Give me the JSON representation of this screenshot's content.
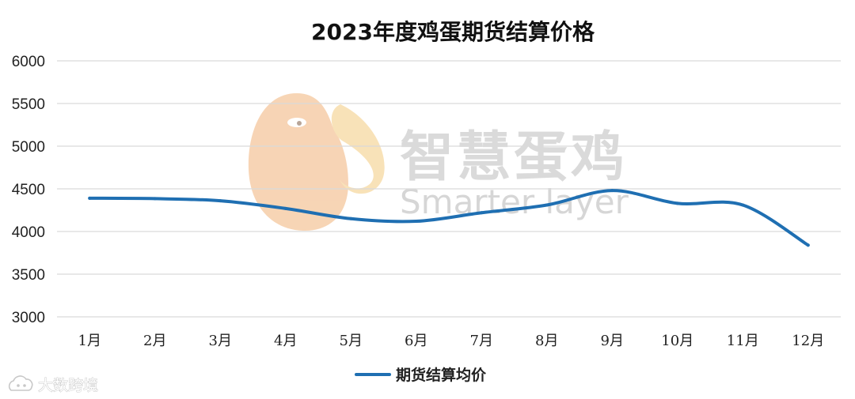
{
  "chart_data": {
    "type": "line",
    "title": "2023年度鸡蛋期货结算价格",
    "categories": [
      "1月",
      "2月",
      "3月",
      "4月",
      "5月",
      "6月",
      "7月",
      "8月",
      "9月",
      "10月",
      "11月",
      "12月"
    ],
    "series": [
      {
        "name": "期货结算均价",
        "color": "#1f6fb2",
        "values": [
          4390,
          4385,
          4360,
          4270,
          4150,
          4120,
          4220,
          4310,
          4480,
          4330,
          4310,
          3840
        ]
      }
    ],
    "yticks": [
      3000,
      3500,
      4000,
      4500,
      5000,
      5500,
      6000
    ],
    "ylim": [
      3000,
      6000
    ],
    "grid": true,
    "legend": "bottom-center"
  },
  "watermark": {
    "cn": "智慧蛋鸡",
    "en": "Smarter layer",
    "corner": "大数跨境",
    "logo_icon": "chicken-logo-icon",
    "corner_icon": "cloud-logo-icon"
  },
  "colors": {
    "line": "#1f6fb2",
    "grid": "#d9d9d9",
    "logo": "#f2c69a"
  }
}
